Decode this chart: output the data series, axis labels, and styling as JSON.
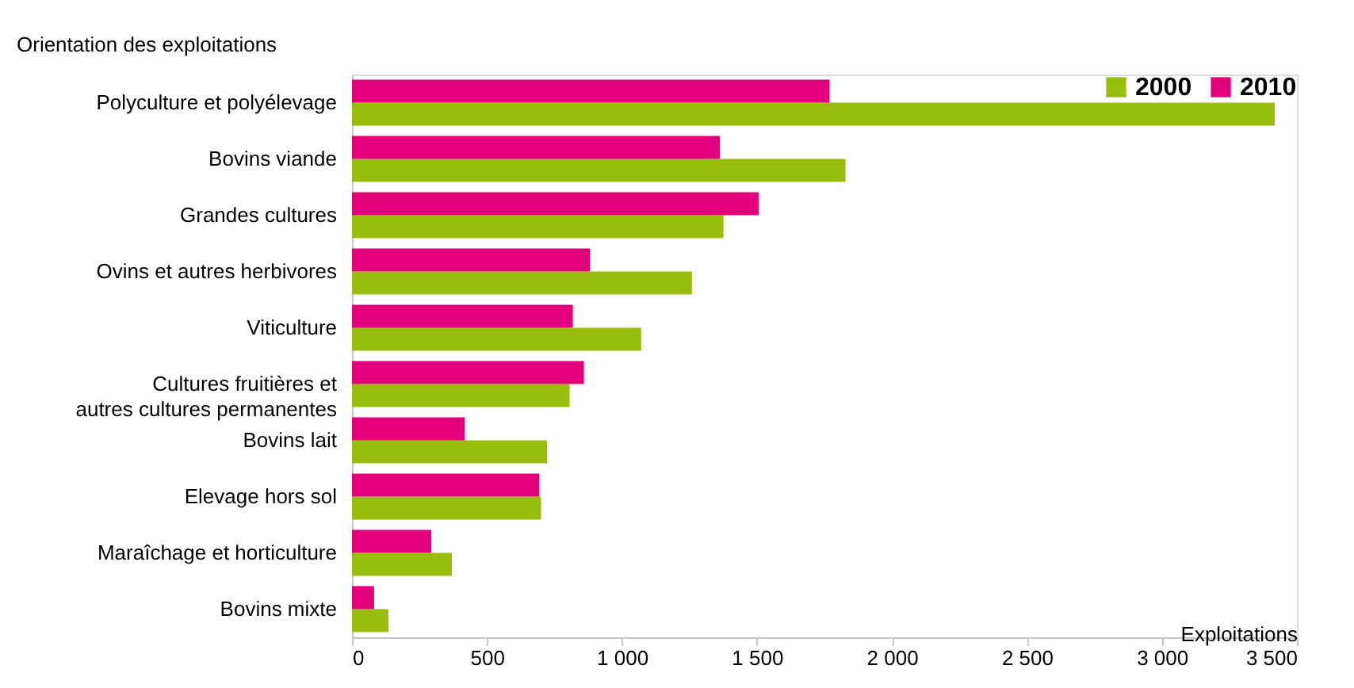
{
  "chart_data": {
    "type": "bar",
    "orientation": "horizontal",
    "ylabel": "Orientation des exploitations",
    "xlabel": "Exploitations",
    "categories": [
      "Polyculture et polyélevage",
      "Bovins viande",
      "Grandes cultures",
      "Ovins et autres herbivores",
      "Viticulture",
      "Cultures fruitières et\nautres cultures permanentes",
      "Bovins lait",
      "Elevage hors sol",
      "Maraîchage et horticulture",
      "Bovins mixte"
    ],
    "series": [
      {
        "name": "2000",
        "color": "#99bd0f",
        "values": [
          3418,
          1828,
          1376,
          1259,
          1071,
          806,
          723,
          700,
          370,
          135
        ]
      },
      {
        "name": "2010",
        "color": "#e2007a",
        "values": [
          1769,
          1363,
          1506,
          882,
          818,
          859,
          418,
          694,
          294,
          82
        ]
      }
    ],
    "xlim": [
      0,
      3500
    ],
    "xticks": [
      0,
      500,
      {
        "value": 1000,
        "label": "1 000"
      },
      {
        "value": 1500,
        "label": "1 500"
      },
      {
        "value": 2000,
        "label": "2 000"
      },
      {
        "value": 2500,
        "label": "2 500"
      },
      {
        "value": 3000,
        "label": "3 000"
      },
      {
        "value": 3500,
        "label": "3 500"
      }
    ],
    "grid": false,
    "legend": "top right"
  }
}
